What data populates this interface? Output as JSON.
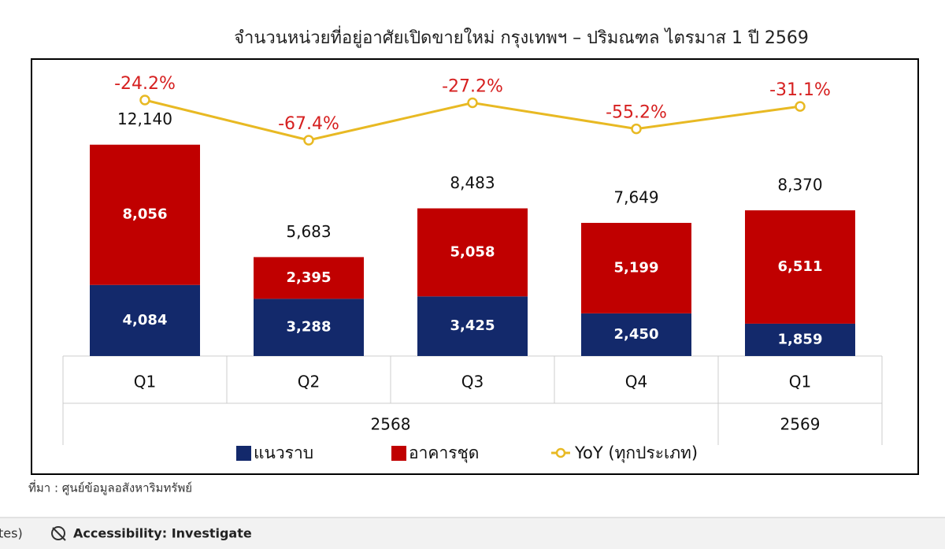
{
  "chart_data": {
    "type": "bar",
    "stacked": true,
    "title": "จำนวนหน่วยที่อยู่อาศัยเปิดขายใหม่ กรุงเทพฯ – ปริมณฑล ไตรมาส 1 ปี 2569",
    "groups": [
      {
        "label": "2568",
        "categories": [
          "Q1",
          "Q2",
          "Q3",
          "Q4"
        ]
      },
      {
        "label": "2569",
        "categories": [
          "Q1"
        ]
      }
    ],
    "series": [
      {
        "name": "แนวราบ",
        "color": "#13296b",
        "values": [
          4084,
          3288,
          3425,
          2450,
          1859
        ],
        "value_labels": [
          "4,084",
          "3,288",
          "3,425",
          "2,450",
          "1,859"
        ]
      },
      {
        "name": "อาคารชุด",
        "color": "#c00000",
        "values": [
          8056,
          2395,
          5058,
          5199,
          6511
        ],
        "value_labels": [
          "8,056",
          "2,395",
          "5,058",
          "5,199",
          "6,511"
        ]
      },
      {
        "name": "YoY (ทุกประเภท)",
        "type": "line",
        "color": "#e8b923",
        "label_color": "#d62020",
        "values": [
          -24.2,
          -67.4,
          -27.2,
          -55.2,
          -31.1
        ],
        "value_labels": [
          "-24.2%",
          "-67.4%",
          "-27.2%",
          "-55.2%",
          "-31.1%"
        ]
      }
    ],
    "totals": {
      "values": [
        12140,
        5683,
        8483,
        7649,
        8370
      ],
      "value_labels": [
        "12,140",
        "5,683",
        "8,483",
        "7,649",
        "8,370"
      ]
    }
  },
  "source": "ที่มา : ศูนย์ข้อมูลอสังหาริมทรัพย์",
  "status_bar": {
    "left": "tes)",
    "accessibility": "Accessibility: Investigate"
  }
}
